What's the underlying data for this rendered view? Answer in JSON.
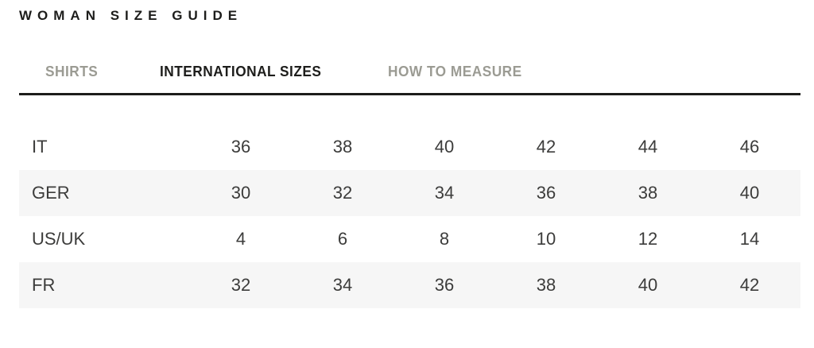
{
  "page": {
    "title": "WOMAN SIZE GUIDE"
  },
  "tabs": [
    {
      "label": "SHIRTS",
      "active": false
    },
    {
      "label": "INTERNATIONAL SIZES",
      "active": true
    },
    {
      "label": "HOW TO MEASURE",
      "active": false
    }
  ],
  "size_table": {
    "rows": [
      {
        "label": "IT",
        "values": [
          "36",
          "38",
          "40",
          "42",
          "44",
          "46"
        ]
      },
      {
        "label": "GER",
        "values": [
          "30",
          "32",
          "34",
          "36",
          "38",
          "40"
        ]
      },
      {
        "label": "US/UK",
        "values": [
          "4",
          "6",
          "8",
          "10",
          "12",
          "14"
        ]
      },
      {
        "label": "FR",
        "values": [
          "32",
          "34",
          "36",
          "38",
          "40",
          "42"
        ]
      }
    ]
  },
  "colors": {
    "text_dark": "#1d1d1b",
    "tab_inactive": "#9b9b93",
    "table_text": "#3c3c3b",
    "row_stripe": "#f6f6f6",
    "rule": "#1d1d1b"
  }
}
